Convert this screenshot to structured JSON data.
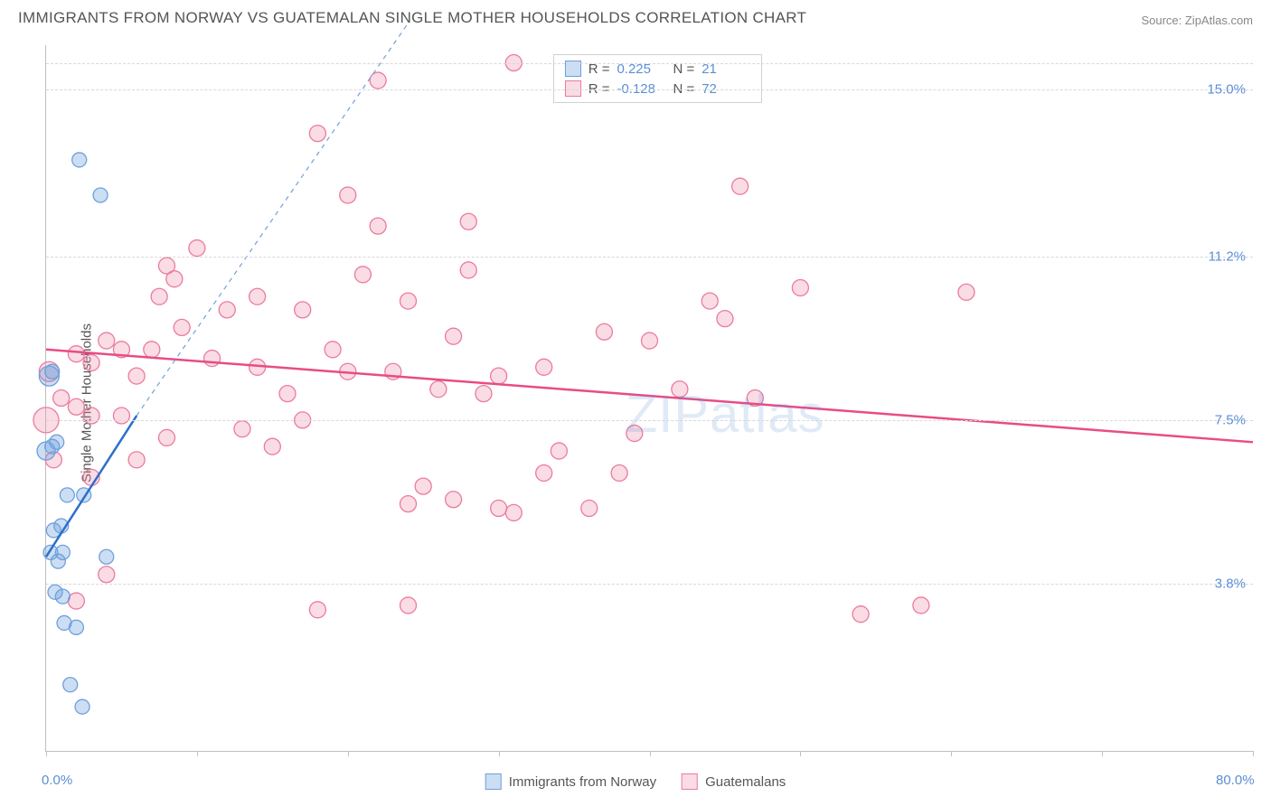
{
  "title": "IMMIGRANTS FROM NORWAY VS GUATEMALAN SINGLE MOTHER HOUSEHOLDS CORRELATION CHART",
  "source": "Source: ZipAtlas.com",
  "ylabel": "Single Mother Households",
  "watermark": "ZIPatlas",
  "axes": {
    "xlim": [
      0,
      80
    ],
    "ylim": [
      0,
      16
    ],
    "x_unit": "%",
    "y_unit": "%",
    "x_tick_step": 10,
    "x_labels": [
      {
        "v": 0,
        "t": "0.0%"
      },
      {
        "v": 80,
        "t": "80.0%"
      }
    ],
    "y_gridlines": [
      {
        "v": 3.8,
        "t": "3.8%"
      },
      {
        "v": 7.5,
        "t": "7.5%"
      },
      {
        "v": 11.2,
        "t": "11.2%"
      },
      {
        "v": 15.0,
        "t": "15.0%"
      }
    ],
    "grid_color": "#d8d8d8",
    "axis_color": "#c0c0c0",
    "tick_label_color": "#5b8fd6",
    "tick_label_fontsize": 15,
    "background_color": "#ffffff"
  },
  "series": {
    "norway": {
      "label": "Immigrants from Norway",
      "color_fill": "rgba(110,160,220,0.35)",
      "color_stroke": "#6ea0dc",
      "marker_radius_default": 8,
      "R": "0.225",
      "N": "21",
      "fit_line": {
        "x1": 0,
        "y1": 4.4,
        "x2": 6,
        "y2": 7.6,
        "color": "#2e6fc8",
        "width": 2.5
      },
      "fit_dashed": {
        "x1": 6,
        "y1": 7.6,
        "x2": 24,
        "y2": 16.5,
        "color": "#6ea0dc",
        "width": 1.2
      },
      "points": [
        {
          "x": 0.2,
          "y": 8.5,
          "r": 11
        },
        {
          "x": 0.0,
          "y": 6.8,
          "r": 10
        },
        {
          "x": 0.4,
          "y": 8.6,
          "r": 8
        },
        {
          "x": 2.2,
          "y": 13.4,
          "r": 8
        },
        {
          "x": 3.6,
          "y": 12.6,
          "r": 8
        },
        {
          "x": 0.5,
          "y": 5.0,
          "r": 8
        },
        {
          "x": 1.0,
          "y": 5.1,
          "r": 8
        },
        {
          "x": 1.1,
          "y": 4.5,
          "r": 8
        },
        {
          "x": 0.8,
          "y": 4.3,
          "r": 8
        },
        {
          "x": 1.4,
          "y": 5.8,
          "r": 8
        },
        {
          "x": 2.5,
          "y": 5.8,
          "r": 8
        },
        {
          "x": 4.0,
          "y": 4.4,
          "r": 8
        },
        {
          "x": 0.6,
          "y": 3.6,
          "r": 8
        },
        {
          "x": 1.1,
          "y": 3.5,
          "r": 8
        },
        {
          "x": 1.2,
          "y": 2.9,
          "r": 8
        },
        {
          "x": 2.0,
          "y": 2.8,
          "r": 8
        },
        {
          "x": 1.6,
          "y": 1.5,
          "r": 8
        },
        {
          "x": 2.4,
          "y": 1.0,
          "r": 8
        },
        {
          "x": 0.3,
          "y": 4.5,
          "r": 8
        },
        {
          "x": 0.7,
          "y": 7.0,
          "r": 8
        },
        {
          "x": 0.4,
          "y": 6.9,
          "r": 8
        }
      ]
    },
    "guatemalans": {
      "label": "Guatemalans",
      "color_fill": "rgba(240,140,165,0.30)",
      "color_stroke": "#ec7aa0",
      "marker_radius_default": 9,
      "R": "-0.128",
      "N": "72",
      "fit_line": {
        "x1": 0,
        "y1": 9.1,
        "x2": 80,
        "y2": 7.0,
        "color": "#e84c86",
        "width": 2.5
      },
      "points": [
        {
          "x": 0.0,
          "y": 7.5,
          "r": 14
        },
        {
          "x": 0.2,
          "y": 8.6,
          "r": 11
        },
        {
          "x": 31,
          "y": 15.6,
          "r": 9
        },
        {
          "x": 22,
          "y": 15.2,
          "r": 9
        },
        {
          "x": 18,
          "y": 14.0,
          "r": 9
        },
        {
          "x": 46,
          "y": 12.8,
          "r": 9
        },
        {
          "x": 20,
          "y": 12.6,
          "r": 9
        },
        {
          "x": 28,
          "y": 12.0,
          "r": 9
        },
        {
          "x": 22,
          "y": 11.9,
          "r": 9
        },
        {
          "x": 10,
          "y": 11.4,
          "r": 9
        },
        {
          "x": 8,
          "y": 11.0,
          "r": 9
        },
        {
          "x": 8.5,
          "y": 10.7,
          "r": 9
        },
        {
          "x": 14,
          "y": 10.3,
          "r": 9
        },
        {
          "x": 24,
          "y": 10.2,
          "r": 9
        },
        {
          "x": 61,
          "y": 10.4,
          "r": 9
        },
        {
          "x": 17,
          "y": 10.0,
          "r": 9
        },
        {
          "x": 27,
          "y": 9.4,
          "r": 9
        },
        {
          "x": 4,
          "y": 9.3,
          "r": 9
        },
        {
          "x": 5,
          "y": 9.1,
          "r": 9
        },
        {
          "x": 7,
          "y": 9.1,
          "r": 9
        },
        {
          "x": 2,
          "y": 9.0,
          "r": 9
        },
        {
          "x": 3,
          "y": 8.8,
          "r": 9
        },
        {
          "x": 11,
          "y": 8.9,
          "r": 9
        },
        {
          "x": 14,
          "y": 8.7,
          "r": 9
        },
        {
          "x": 20,
          "y": 8.6,
          "r": 9
        },
        {
          "x": 23,
          "y": 8.6,
          "r": 9
        },
        {
          "x": 30,
          "y": 8.5,
          "r": 9
        },
        {
          "x": 26,
          "y": 8.2,
          "r": 9
        },
        {
          "x": 29,
          "y": 8.1,
          "r": 9
        },
        {
          "x": 37,
          "y": 9.5,
          "r": 9
        },
        {
          "x": 40,
          "y": 9.3,
          "r": 9
        },
        {
          "x": 44,
          "y": 10.2,
          "r": 9
        },
        {
          "x": 1,
          "y": 8.0,
          "r": 9
        },
        {
          "x": 2,
          "y": 7.8,
          "r": 9
        },
        {
          "x": 3,
          "y": 7.6,
          "r": 9
        },
        {
          "x": 5,
          "y": 7.6,
          "r": 9
        },
        {
          "x": 17,
          "y": 7.5,
          "r": 9
        },
        {
          "x": 0.5,
          "y": 6.6,
          "r": 9
        },
        {
          "x": 6,
          "y": 6.6,
          "r": 9
        },
        {
          "x": 8,
          "y": 7.1,
          "r": 9
        },
        {
          "x": 3,
          "y": 6.2,
          "r": 9
        },
        {
          "x": 33,
          "y": 6.3,
          "r": 9
        },
        {
          "x": 38,
          "y": 6.3,
          "r": 9
        },
        {
          "x": 25,
          "y": 6.0,
          "r": 9
        },
        {
          "x": 27,
          "y": 5.7,
          "r": 9
        },
        {
          "x": 24,
          "y": 5.6,
          "r": 9
        },
        {
          "x": 30,
          "y": 5.5,
          "r": 9
        },
        {
          "x": 31,
          "y": 5.4,
          "r": 9
        },
        {
          "x": 36,
          "y": 5.5,
          "r": 9
        },
        {
          "x": 18,
          "y": 3.2,
          "r": 9
        },
        {
          "x": 24,
          "y": 3.3,
          "r": 9
        },
        {
          "x": 54,
          "y": 3.1,
          "r": 9
        },
        {
          "x": 58,
          "y": 3.3,
          "r": 9
        },
        {
          "x": 2,
          "y": 3.4,
          "r": 9
        },
        {
          "x": 4,
          "y": 4.0,
          "r": 9
        },
        {
          "x": 6,
          "y": 8.5,
          "r": 9
        },
        {
          "x": 9,
          "y": 9.6,
          "r": 9
        },
        {
          "x": 12,
          "y": 10.0,
          "r": 9
        },
        {
          "x": 15,
          "y": 6.9,
          "r": 9
        },
        {
          "x": 19,
          "y": 9.1,
          "r": 9
        },
        {
          "x": 21,
          "y": 10.8,
          "r": 9
        },
        {
          "x": 33,
          "y": 8.7,
          "r": 9
        },
        {
          "x": 34,
          "y": 6.8,
          "r": 9
        },
        {
          "x": 42,
          "y": 8.2,
          "r": 9
        },
        {
          "x": 45,
          "y": 9.8,
          "r": 9
        },
        {
          "x": 47,
          "y": 8.0,
          "r": 9
        },
        {
          "x": 50,
          "y": 10.5,
          "r": 9
        },
        {
          "x": 7.5,
          "y": 10.3,
          "r": 9
        },
        {
          "x": 13,
          "y": 7.3,
          "r": 9
        },
        {
          "x": 16,
          "y": 8.1,
          "r": 9
        },
        {
          "x": 39,
          "y": 7.2,
          "r": 9
        },
        {
          "x": 28,
          "y": 10.9,
          "r": 9
        }
      ]
    }
  },
  "legend_stats": {
    "r_label": "R =",
    "n_label": "N ="
  },
  "title_fontsize": 17,
  "title_color": "#555555",
  "source_fontsize": 13,
  "source_color": "#888888"
}
